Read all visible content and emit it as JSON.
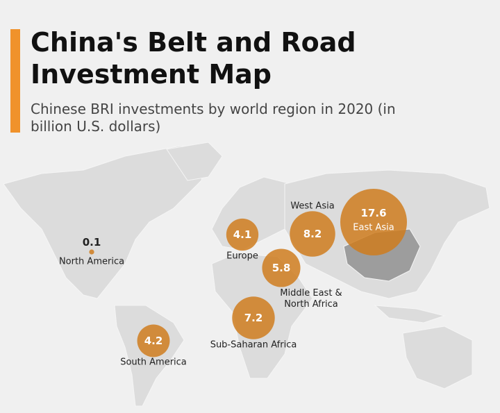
{
  "header": {
    "title": "China's Belt and Road Investment Map",
    "subtitle": "Chinese BRI investments by world region in 2020 (in billion U.S. dollars)"
  },
  "regions": [
    {
      "name": "North America",
      "value": 0.1
    },
    {
      "name": "Europe",
      "value": 4.1
    },
    {
      "name": "West Asia",
      "value": 8.2
    },
    {
      "name": "East Asia",
      "value": 17.6
    },
    {
      "name": "Middle East & North Africa",
      "value": 5.8
    },
    {
      "name": "Sub-Saharan Africa",
      "value": 7.2
    },
    {
      "name": "South America",
      "value": 4.2
    }
  ]
}
